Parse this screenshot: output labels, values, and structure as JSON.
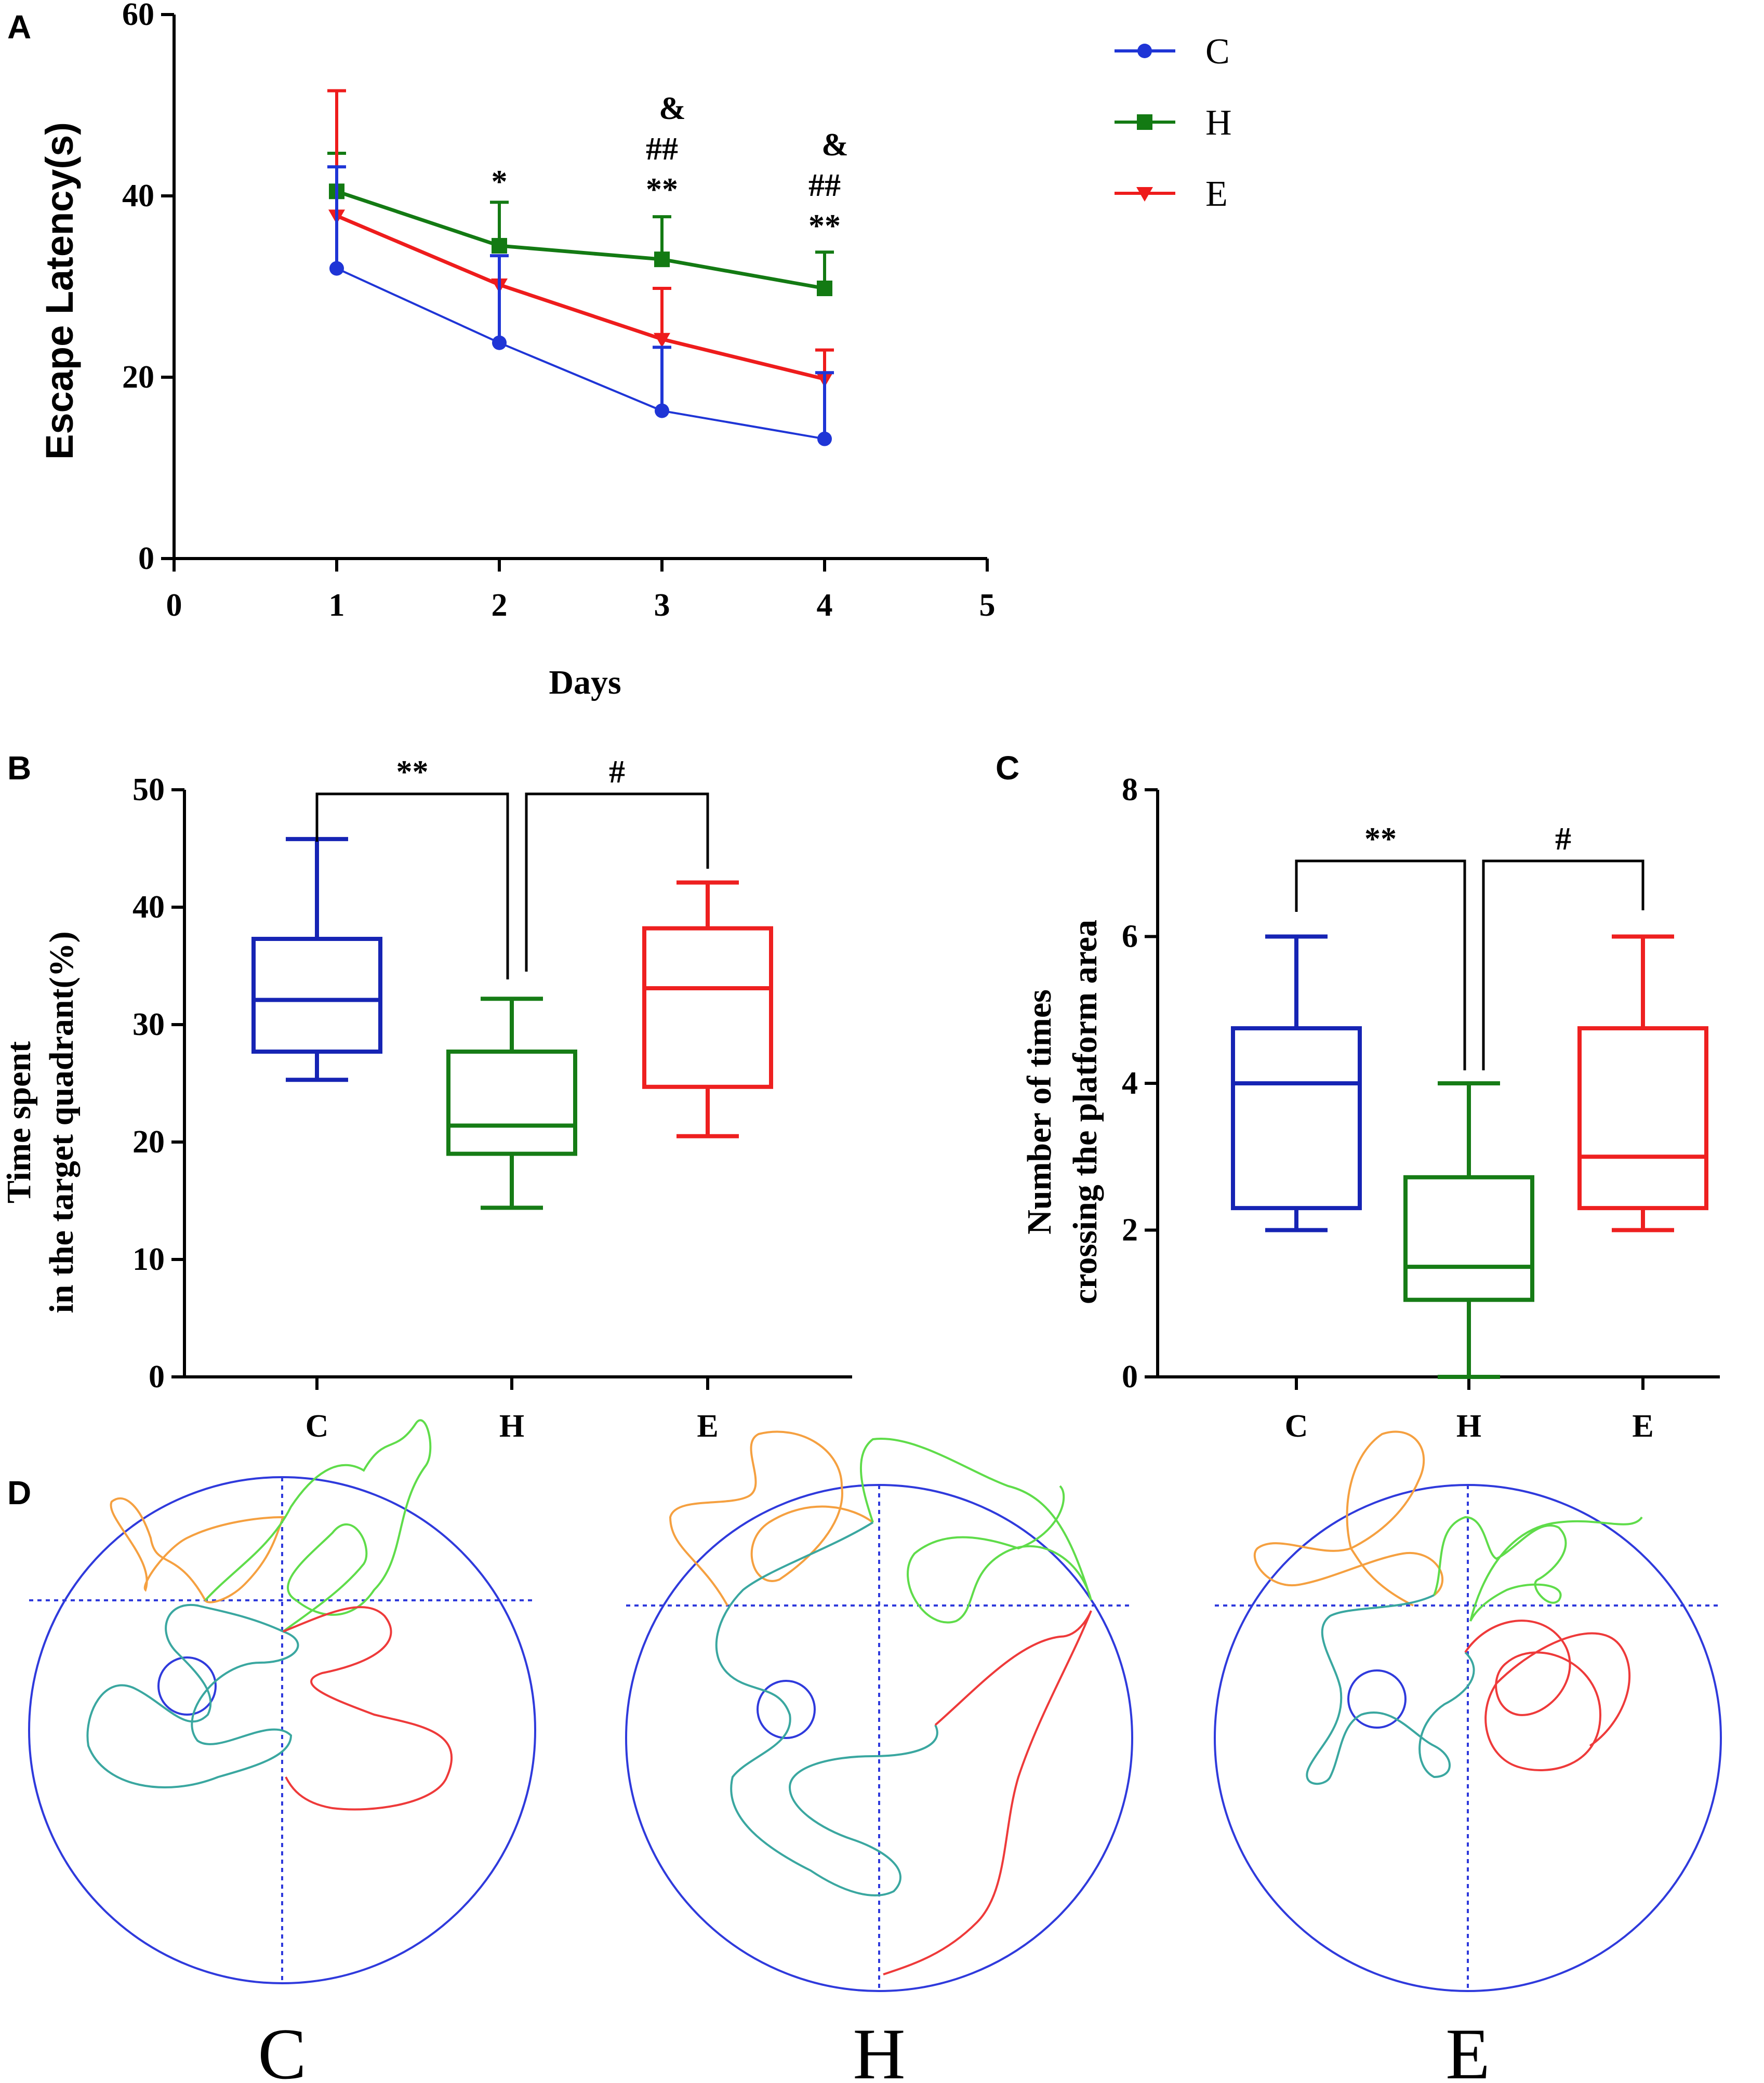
{
  "panels": {
    "A": "A",
    "B": "B",
    "C": "C",
    "D": "D"
  },
  "colors": {
    "C": "#1f35d6",
    "H": "#137a13",
    "E": "#ee1c1c",
    "boxC": "#1624b4",
    "boxH": "#167c16",
    "boxE": "#ee2020",
    "maze": "#2f3adc"
  },
  "chart_data": [
    {
      "id": "A",
      "type": "line",
      "title": "",
      "xlabel": "Days",
      "ylabel": "Escape Latency(s)",
      "xlim": [
        0,
        5
      ],
      "ylim": [
        0,
        60
      ],
      "xticks": [
        "0",
        "1",
        "2",
        "3",
        "4",
        "5"
      ],
      "yticks": [
        "0",
        "20",
        "40",
        "60"
      ],
      "x": [
        1,
        2,
        3,
        4
      ],
      "series": [
        {
          "name": "C",
          "marker": "circle",
          "values": [
            32,
            23.8,
            16.3,
            13.2
          ],
          "err": [
            11.2,
            9.6,
            7.0,
            7.3
          ]
        },
        {
          "name": "H",
          "marker": "square",
          "values": [
            40.5,
            34.5,
            33.0,
            29.8
          ],
          "err": [
            4.2,
            4.8,
            4.7,
            4.0
          ]
        },
        {
          "name": "E",
          "marker": "triangle-down",
          "values": [
            37.8,
            30.2,
            24.2,
            19.8
          ],
          "err": [
            13.8,
            0,
            5.6,
            3.2
          ]
        }
      ],
      "annotations": [
        {
          "x": 2,
          "lines": [
            "*"
          ]
        },
        {
          "x": 3,
          "lines": [
            "&",
            "##",
            "**"
          ]
        },
        {
          "x": 4,
          "lines": [
            "&",
            "##",
            "**"
          ]
        }
      ],
      "legend": [
        "C",
        "H",
        "E"
      ],
      "legend_position": "top-right outside"
    },
    {
      "id": "B",
      "type": "box",
      "ylabel_lines": [
        "Time spent",
        "in the target quadrant(%)"
      ],
      "categories": [
        "C",
        "H",
        "E"
      ],
      "ylim": [
        0,
        50
      ],
      "yticks": [
        "0",
        "10",
        "20",
        "30",
        "40",
        "50"
      ],
      "boxes": [
        {
          "min": 25.3,
          "q1": 27.7,
          "median": 32.1,
          "q3": 37.3,
          "max": 45.8
        },
        {
          "min": 14.4,
          "q1": 19.0,
          "median": 21.4,
          "q3": 27.7,
          "max": 32.2
        },
        {
          "min": 20.5,
          "q1": 24.7,
          "median": 33.1,
          "q3": 38.2,
          "max": 42.1
        }
      ],
      "brackets": [
        {
          "from": "C",
          "to": "H",
          "label": "**"
        },
        {
          "from": "H",
          "to": "E",
          "label": "#"
        }
      ]
    },
    {
      "id": "C",
      "type": "box",
      "ylabel_lines": [
        "Number of times",
        "crossing the platform area"
      ],
      "categories": [
        "C",
        "H",
        "E"
      ],
      "ylim": [
        0,
        8
      ],
      "yticks": [
        "0",
        "2",
        "4",
        "6",
        "8"
      ],
      "boxes": [
        {
          "min": 2.0,
          "q1": 2.3,
          "median": 4.0,
          "q3": 4.75,
          "max": 6.0
        },
        {
          "min": 0.0,
          "q1": 1.05,
          "median": 1.5,
          "q3": 2.72,
          "max": 4.0
        },
        {
          "min": 2.0,
          "q1": 2.3,
          "median": 3.0,
          "q3": 4.75,
          "max": 6.0
        }
      ],
      "brackets": [
        {
          "from": "C",
          "to": "H",
          "label": "**"
        },
        {
          "from": "H",
          "to": "E",
          "label": "#"
        }
      ]
    }
  ],
  "maze": {
    "labels": [
      "C",
      "H",
      "E"
    ],
    "track_colors": [
      "#f5a040",
      "#5fdc4a",
      "#3aa7a0",
      "#ee3a3a"
    ]
  }
}
